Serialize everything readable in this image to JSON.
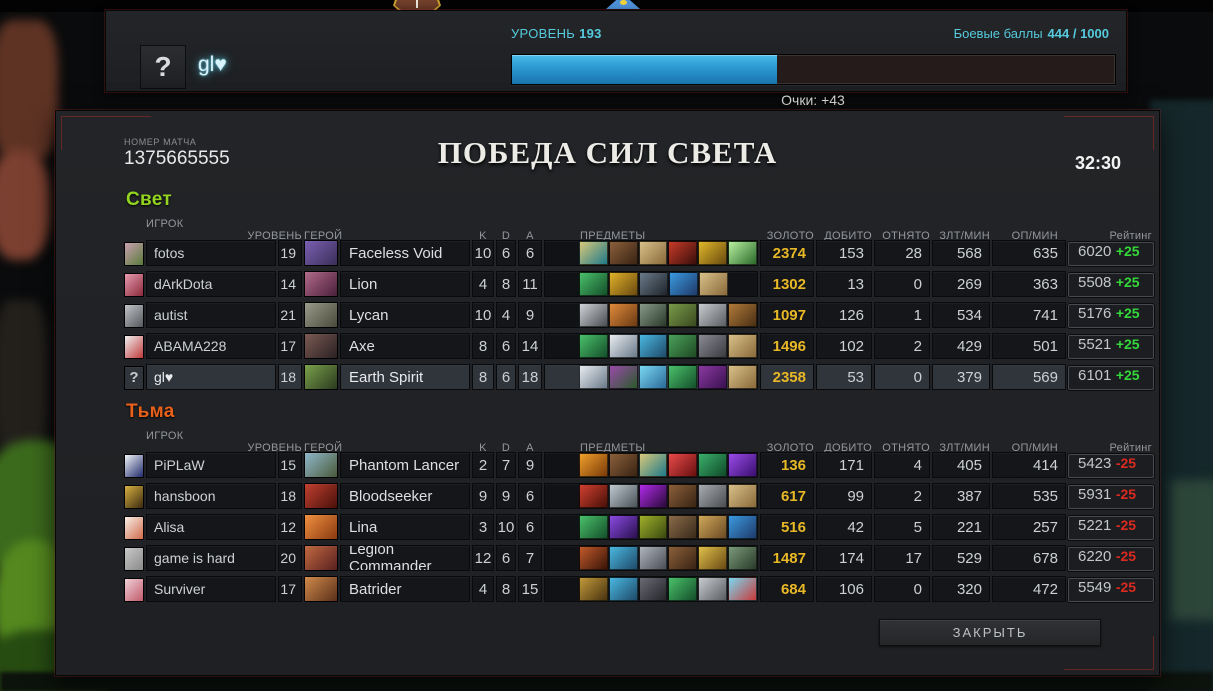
{
  "colors": {
    "accent_cyan": "#55cbdd",
    "radiant": "#93d420",
    "dire": "#e8601a",
    "gold_text": "#e9b826",
    "rating_up": "#35d83a",
    "rating_down": "#da2a20",
    "xp_fill": "#2d9bd3"
  },
  "profile_bar": {
    "avatar_glyph": "?",
    "player_name": "gl♥",
    "level_label": "УРОВЕНЬ",
    "level_value": "193",
    "battle_points_label": "Боевые баллы",
    "battle_points_value": "444 / 1000",
    "xp_progress_percent": 44,
    "points_gain": "Очки: +43"
  },
  "scoreboard": {
    "match_label": "НОМЕР МАТЧА",
    "match_id": "1375665555",
    "title": "ПОБЕДА СИЛ СВЕТА",
    "duration": "32:30",
    "close_button": "ЗАКРЫТЬ",
    "columns": {
      "player": "ИГРОК",
      "level": "УРОВЕНЬ",
      "hero": "ГЕРОЙ",
      "k": "K",
      "d": "D",
      "a": "A",
      "items": "ПРЕДМЕТЫ",
      "gold": "ЗОЛОТО",
      "last_hits": "ДОБИТО",
      "denies": "ОТНЯТО",
      "gpm": "ЗЛТ/МИН",
      "xpm": "ОП/МИН",
      "rating": "Рейтинг"
    },
    "teams": [
      {
        "name": "Свет",
        "color": "#93d420",
        "players": [
          {
            "name": "fotos",
            "level": "19",
            "hero": "Faceless Void",
            "hero_colors": [
              "#7a5fb0",
              "#3a2f5a"
            ],
            "avatar_colors": [
              "#c8a0b0",
              "#5a7a3a"
            ],
            "kills": "10",
            "deaths": "6",
            "assists": "6",
            "items": [
              [
                "#d8c87a",
                "#1f7a8a"
              ],
              [
                "#8a5f3a",
                "#3a2414"
              ],
              [
                "#d8c08a",
                "#8a6a3a"
              ],
              [
                "#c83a2a",
                "#3a0f0a"
              ],
              [
                "#e0b82a",
                "#6a4a10"
              ],
              [
                "#b8f0a0",
                "#2a6a2a"
              ]
            ],
            "gold": "2374",
            "last_hits": "153",
            "denies": "28",
            "gpm": "568",
            "xpm": "635",
            "rating": "6020",
            "rating_change": "+25"
          },
          {
            "name": "dArkDota",
            "level": "14",
            "hero": "Lion",
            "hero_colors": [
              "#b06a8a",
              "#4a1f3a"
            ],
            "avatar_colors": [
              "#e89ab0",
              "#8a2a3a"
            ],
            "kills": "4",
            "deaths": "8",
            "assists": "11",
            "items": [
              [
                "#4ac06a",
                "#14502a"
              ],
              [
                "#e0b02a",
                "#6a4a10"
              ],
              [
                "#6a7a8a",
                "#1f242a"
              ],
              [
                "#3a9ae0",
                "#1f3a6a"
              ],
              [
                "#d8c08a",
                "#8a6a3a"
              ]
            ],
            "gold": "1302",
            "last_hits": "13",
            "denies": "0",
            "gpm": "269",
            "xpm": "363",
            "rating": "5508",
            "rating_change": "+25"
          },
          {
            "name": "autist",
            "level": "21",
            "hero": "Lycan",
            "hero_colors": [
              "#9a9a8a",
              "#4a4a3a"
            ],
            "avatar_colors": [
              "#c0c4c8",
              "#55585c"
            ],
            "kills": "10",
            "deaths": "4",
            "assists": "9",
            "items": [
              [
                "#d0d4d8",
                "#4a4e52"
              ],
              [
                "#e08a3a",
                "#6a3a14"
              ],
              [
                "#8a9a8a",
                "#2a3a2a"
              ],
              [
                "#7a9a4a",
                "#3a4a1f"
              ],
              [
                "#c8ccd0",
                "#5a5e62"
              ],
              [
                "#b07a3a",
                "#4a2f14"
              ]
            ],
            "gold": "1097",
            "last_hits": "126",
            "denies": "1",
            "gpm": "534",
            "xpm": "741",
            "rating": "5176",
            "rating_change": "+25"
          },
          {
            "name": "ABAMA228",
            "level": "17",
            "hero": "Axe",
            "hero_colors": [
              "#7a5a52",
              "#2a2022"
            ],
            "avatar_colors": [
              "#f0f0f0",
              "#c03a3a"
            ],
            "kills": "8",
            "deaths": "6",
            "assists": "14",
            "items": [
              [
                "#4ac06a",
                "#14502a"
              ],
              [
                "#e8ecf0",
                "#6a7a8a"
              ],
              [
                "#4ab8e0",
                "#1f4a6a"
              ],
              [
                "#4aa05a",
                "#1f4a24"
              ],
              [
                "#8a8a94",
                "#3a3a40"
              ],
              [
                "#d8c08a",
                "#8a6a3a"
              ]
            ],
            "gold": "1496",
            "last_hits": "102",
            "denies": "2",
            "gpm": "429",
            "xpm": "501",
            "rating": "5521",
            "rating_change": "+25"
          },
          {
            "name": "gl♥",
            "level": "18",
            "hero": "Earth Spirit",
            "hero_colors": [
              "#7aa04a",
              "#2a3a1f"
            ],
            "avatar_glyph": "?",
            "is_local": true,
            "kills": "8",
            "deaths": "6",
            "assists": "18",
            "items": [
              [
                "#e8ecf0",
                "#6a7a8a"
              ],
              [
                "#9a4aaa",
                "#2a5a2a"
              ],
              [
                "#7ad8f0",
                "#2a6a9a"
              ],
              [
                "#4ac06a",
                "#14502a"
              ],
              [
                "#8a3aa0",
                "#3a1050"
              ],
              [
                "#d8c08a",
                "#8a6a3a"
              ]
            ],
            "gold": "2358",
            "last_hits": "53",
            "denies": "0",
            "gpm": "379",
            "xpm": "569",
            "rating": "6101",
            "rating_change": "+25"
          }
        ]
      },
      {
        "name": "Тьма",
        "color": "#e8601a",
        "players": [
          {
            "name": "PiPLaW",
            "level": "15",
            "hero": "Phantom Lancer",
            "hero_colors": [
              "#8fb8cc",
              "#4a5a3a"
            ],
            "avatar_colors": [
              "#f0f4f8",
              "#1f2a6a"
            ],
            "kills": "2",
            "deaths": "7",
            "assists": "9",
            "items": [
              [
                "#f0a02a",
                "#7a3a0a"
              ],
              [
                "#8a5f3a",
                "#3a2414"
              ],
              [
                "#d8c87a",
                "#1f7a8a"
              ],
              [
                "#e84a4a",
                "#6a1010"
              ],
              [
                "#3ab06a",
                "#104a2a"
              ],
              [
                "#9a4ae8",
                "#3a1070"
              ]
            ],
            "gold": "136",
            "last_hits": "171",
            "denies": "4",
            "gpm": "405",
            "xpm": "414",
            "rating": "5423",
            "rating_change": "-25"
          },
          {
            "name": "hansboon",
            "level": "18",
            "hero": "Bloodseeker",
            "hero_colors": [
              "#c04030",
              "#4a100a"
            ],
            "avatar_colors": [
              "#d8b040",
              "#3a2a10"
            ],
            "kills": "9",
            "deaths": "9",
            "assists": "6",
            "items": [
              [
                "#d04030",
                "#4a1008"
              ],
              [
                "#c0c8d0",
                "#4a525a"
              ],
              [
                "#b02ae8",
                "#2a0a3a"
              ],
              [
                "#8a5f3a",
                "#3a2414"
              ],
              [
                "#a8acb0",
                "#4a4e52"
              ],
              [
                "#d8c08a",
                "#8a6a3a"
              ]
            ],
            "gold": "617",
            "last_hits": "99",
            "denies": "2",
            "gpm": "387",
            "xpm": "535",
            "rating": "5931",
            "rating_change": "-25"
          },
          {
            "name": "Alisa",
            "level": "12",
            "hero": "Lina",
            "hero_colors": [
              "#f09040",
              "#8a3a10"
            ],
            "avatar_colors": [
              "#f8f0e8",
              "#d06a4a"
            ],
            "kills": "3",
            "deaths": "10",
            "assists": "6",
            "items": [
              [
                "#4ac06a",
                "#14502a"
              ],
              [
                "#8a4ae0",
                "#2a1050"
              ],
              [
                "#a0b02a",
                "#3a4a10"
              ],
              [
                "#8a6a4a",
                "#3a2a1a"
              ],
              [
                "#d0a85a",
                "#6a4a24"
              ],
              [
                "#3a9ae0",
                "#1f3a6a"
              ]
            ],
            "gold": "516",
            "last_hits": "42",
            "denies": "5",
            "gpm": "221",
            "xpm": "257",
            "rating": "5221",
            "rating_change": "-25"
          },
          {
            "name": "game is hard",
            "level": "20",
            "hero": "Legion Commander",
            "hero_colors": [
              "#c06a40",
              "#5a1f1f"
            ],
            "avatar_colors": [
              "#c8c8c8",
              "#8a8a8a"
            ],
            "kills": "12",
            "deaths": "6",
            "assists": "7",
            "items": [
              [
                "#c05a2a",
                "#3a1408"
              ],
              [
                "#4ab8e0",
                "#1f4a6a"
              ],
              [
                "#b0b4bc",
                "#4a4e56"
              ],
              [
                "#8a5f3a",
                "#3a2414"
              ],
              [
                "#e0c04a",
                "#6a4a14"
              ],
              [
                "#7a9a7a",
                "#2a3a2a"
              ]
            ],
            "gold": "1487",
            "last_hits": "174",
            "denies": "17",
            "gpm": "529",
            "xpm": "678",
            "rating": "6220",
            "rating_change": "-25"
          },
          {
            "name": "Surviver",
            "level": "17",
            "hero": "Batrider",
            "hero_colors": [
              "#d08a4a",
              "#5a2f1a"
            ],
            "avatar_colors": [
              "#f0d0d8",
              "#c05a6a"
            ],
            "kills": "4",
            "deaths": "8",
            "assists": "15",
            "items": [
              [
                "#c0983a",
                "#4a3410"
              ],
              [
                "#4ab8e0",
                "#1f4a6a"
              ],
              [
                "#6a6a74",
                "#24242a"
              ],
              [
                "#4ac06a",
                "#14502a"
              ],
              [
                "#c8ccd0",
                "#5a5e62"
              ],
              [
                "#7ad8f0",
                "#c83a3a"
              ]
            ],
            "gold": "684",
            "last_hits": "106",
            "denies": "0",
            "gpm": "320",
            "xpm": "472",
            "rating": "5549",
            "rating_change": "-25"
          }
        ]
      }
    ]
  }
}
